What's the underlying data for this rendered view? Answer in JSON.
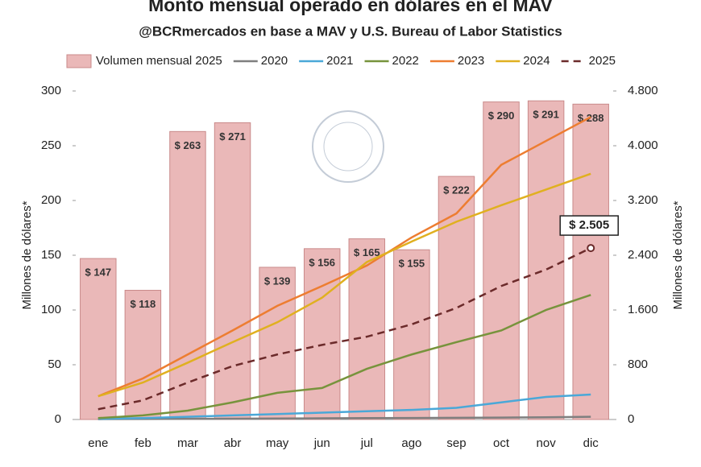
{
  "chart_data": {
    "type": "bar",
    "title": "Monto mensual operado en dólares en el MAV",
    "subtitle": "@BCRmercados en base a MAV y U.S. Bureau of Labor Statistics",
    "y_label": "Millones de dólares*",
    "y2_label": "Millones de dólares*",
    "categories": [
      "ene",
      "feb",
      "mar",
      "abr",
      "may",
      "jun",
      "jul",
      "ago",
      "sep",
      "oct",
      "nov",
      "dic"
    ],
    "ylim": [
      0,
      300
    ],
    "yticks": [
      0,
      50,
      100,
      150,
      200,
      250,
      300
    ],
    "y2lim": [
      0,
      4800
    ],
    "y2ticks": [
      0,
      800,
      {
        "value": 1600,
        "label": "1.600"
      },
      {
        "value": 2400,
        "label": "2.400"
      },
      {
        "value": 3200,
        "label": "3.200"
      },
      {
        "value": 4000,
        "label": "4.000"
      },
      {
        "value": 4800,
        "label": "4.800"
      }
    ],
    "series": [
      {
        "name": "Volumen mensual 2025",
        "type": "bar",
        "color": "#eab8b8",
        "values": [
          147,
          118,
          263,
          271,
          139,
          156,
          165,
          155,
          222,
          290,
          291,
          288
        ],
        "value_labels": [
          "$ 147",
          "$ 118",
          "$ 263",
          "$ 271",
          "$ 139",
          "$ 156",
          "$ 165",
          "$ 155",
          "$ 222",
          "$ 290",
          "$ 291",
          "$ 288"
        ]
      },
      {
        "name": "2020",
        "type": "line",
        "axis": "y2",
        "color": "#7f7f7f",
        "values": [
          5,
          8,
          10,
          12,
          15,
          17,
          20,
          22,
          25,
          28,
          32,
          40
        ]
      },
      {
        "name": "2021",
        "type": "line",
        "axis": "y2",
        "color": "#4aa8d8",
        "values": [
          10,
          20,
          40,
          60,
          80,
          100,
          120,
          140,
          170,
          250,
          330,
          365
        ]
      },
      {
        "name": "2022",
        "type": "line",
        "axis": "y2",
        "color": "#77933c",
        "values": [
          20,
          60,
          130,
          250,
          390,
          460,
          740,
          950,
          1130,
          1300,
          1600,
          1820
        ]
      },
      {
        "name": "2023",
        "type": "line",
        "axis": "y2",
        "color": "#ed7d31",
        "values": [
          340,
          600,
          950,
          1300,
          1660,
          1950,
          2250,
          2660,
          3010,
          3720,
          4070,
          4420
        ]
      },
      {
        "name": "2024",
        "type": "line",
        "axis": "y2",
        "color": "#e0b020",
        "values": [
          340,
          540,
          830,
          1130,
          1420,
          1780,
          2300,
          2600,
          2890,
          3130,
          3360,
          3590
        ]
      },
      {
        "name": "2025",
        "type": "line",
        "axis": "y2",
        "color": "#6b2a2a",
        "dash": true,
        "values": [
          150,
          280,
          540,
          780,
          950,
          1090,
          1210,
          1390,
          1630,
          1950,
          2190,
          2505
        ],
        "value_labels": [
          null,
          null,
          null,
          null,
          null,
          null,
          null,
          null,
          null,
          null,
          null,
          "$ 2.505"
        ]
      }
    ]
  }
}
